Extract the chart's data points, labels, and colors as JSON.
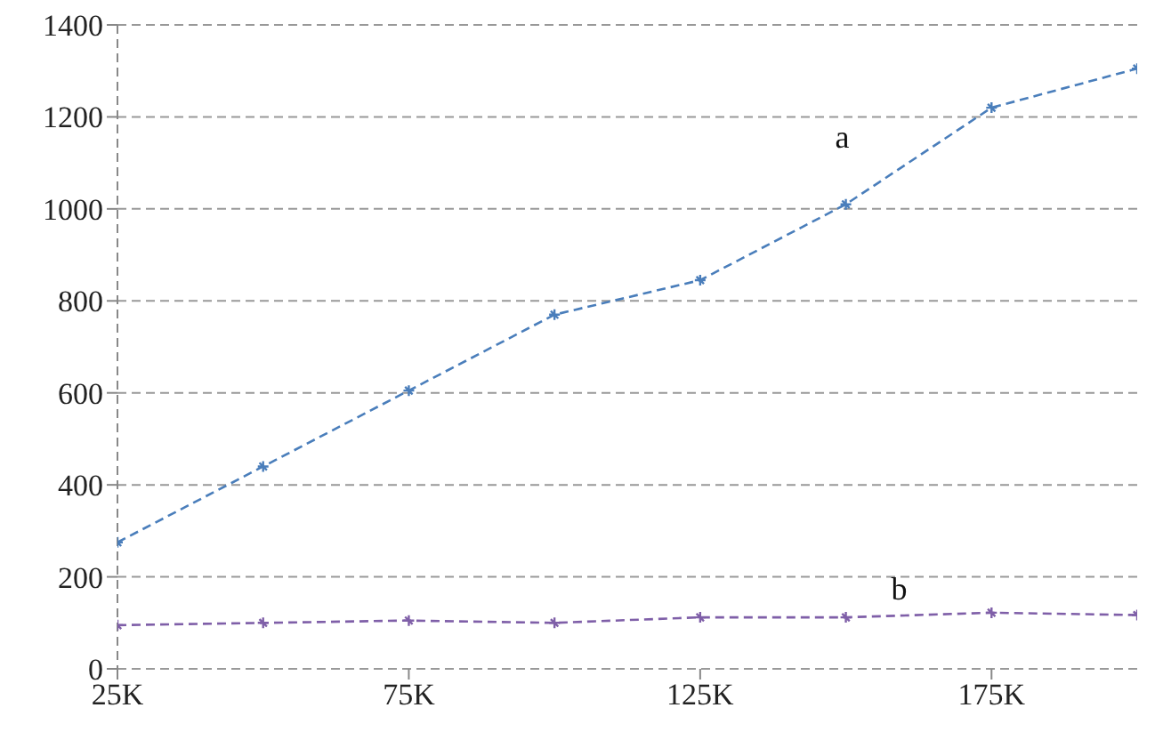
{
  "chart_data": {
    "type": "line",
    "x": [
      25000,
      50000,
      75000,
      100000,
      125000,
      150000,
      175000,
      200000
    ],
    "series": [
      {
        "name": "a",
        "color": "#4a7ebb",
        "values": [
          275,
          440,
          605,
          770,
          845,
          1010,
          1220,
          1305
        ]
      },
      {
        "name": "b",
        "color": "#7f5fa8",
        "values": [
          95,
          100,
          105,
          100,
          112,
          112,
          122,
          117
        ]
      }
    ],
    "xlim": [
      25000,
      200000
    ],
    "xticks": [
      {
        "value": 25000,
        "label": "25K"
      },
      {
        "value": 75000,
        "label": "75K"
      },
      {
        "value": 125000,
        "label": "125K"
      },
      {
        "value": 175000,
        "label": "175K"
      }
    ],
    "ylim": [
      0,
      1400
    ],
    "yticks": [
      0,
      200,
      400,
      600,
      800,
      1000,
      1200,
      1400
    ],
    "grid": "y",
    "marker": "cross",
    "line_style": "dashed",
    "legend": false
  }
}
